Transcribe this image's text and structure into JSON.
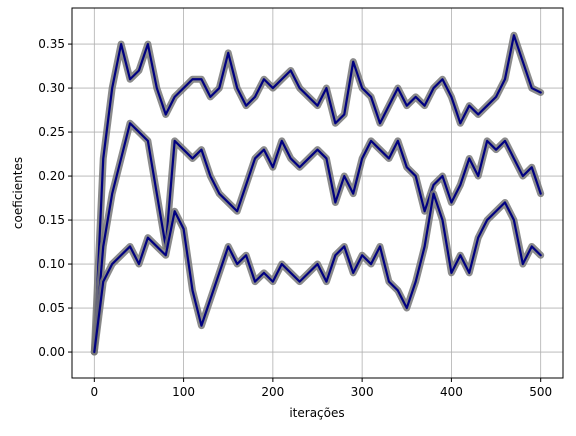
{
  "chart_data": {
    "type": "line",
    "xlabel": "iterações",
    "ylabel": "coeficientes",
    "x": [
      0,
      10,
      20,
      30,
      40,
      50,
      60,
      70,
      80,
      90,
      100,
      110,
      120,
      130,
      140,
      150,
      160,
      170,
      180,
      190,
      200,
      210,
      220,
      230,
      240,
      250,
      260,
      270,
      280,
      290,
      300,
      310,
      320,
      330,
      340,
      350,
      360,
      370,
      380,
      390,
      400,
      410,
      420,
      430,
      440,
      450,
      460,
      470,
      480,
      490,
      500
    ],
    "series": [
      {
        "color": "navy",
        "values": [
          0,
          0.22,
          0.3,
          0.35,
          0.31,
          0.32,
          0.35,
          0.3,
          0.27,
          0.29,
          0.3,
          0.31,
          0.31,
          0.29,
          0.3,
          0.34,
          0.3,
          0.28,
          0.29,
          0.31,
          0.3,
          0.31,
          0.32,
          0.3,
          0.29,
          0.28,
          0.3,
          0.26,
          0.27,
          0.33,
          0.3,
          0.29,
          0.26,
          0.28,
          0.3,
          0.28,
          0.29,
          0.28,
          0.3,
          0.31,
          0.29,
          0.26,
          0.28,
          0.27,
          0.28,
          0.29,
          0.31,
          0.36,
          0.33,
          0.3,
          0.295
        ]
      },
      {
        "color": "navy",
        "values": [
          0,
          0.12,
          0.18,
          0.22,
          0.26,
          0.25,
          0.24,
          0.18,
          0.12,
          0.24,
          0.23,
          0.22,
          0.23,
          0.2,
          0.18,
          0.17,
          0.16,
          0.19,
          0.22,
          0.23,
          0.21,
          0.24,
          0.22,
          0.21,
          0.22,
          0.23,
          0.22,
          0.17,
          0.2,
          0.18,
          0.22,
          0.24,
          0.23,
          0.22,
          0.24,
          0.21,
          0.2,
          0.16,
          0.19,
          0.2,
          0.17,
          0.19,
          0.22,
          0.2,
          0.24,
          0.23,
          0.24,
          0.22,
          0.2,
          0.21,
          0.18
        ]
      },
      {
        "color": "navy",
        "values": [
          0,
          0.08,
          0.1,
          0.11,
          0.12,
          0.1,
          0.13,
          0.12,
          0.11,
          0.16,
          0.14,
          0.07,
          0.03,
          0.06,
          0.09,
          0.12,
          0.1,
          0.11,
          0.08,
          0.09,
          0.08,
          0.1,
          0.09,
          0.08,
          0.09,
          0.1,
          0.08,
          0.11,
          0.12,
          0.09,
          0.11,
          0.1,
          0.12,
          0.08,
          0.07,
          0.05,
          0.08,
          0.12,
          0.18,
          0.15,
          0.09,
          0.11,
          0.09,
          0.13,
          0.15,
          0.16,
          0.17,
          0.15,
          0.1,
          0.12,
          0.11
        ]
      }
    ],
    "halo_color": "#777777",
    "xlim": [
      -25,
      525
    ],
    "ylim": [
      -0.0295,
      0.391
    ],
    "xticks": [
      0,
      100,
      200,
      300,
      400,
      500
    ],
    "yticks": [
      {
        "value": 0,
        "label": "0.00"
      },
      0.05,
      {
        "value": 0.1,
        "label": "0.10"
      },
      0.15,
      {
        "value": 0.2,
        "label": "0.20"
      },
      0.25,
      {
        "value": 0.3,
        "label": "0.30"
      },
      0.35
    ],
    "grid": true
  }
}
